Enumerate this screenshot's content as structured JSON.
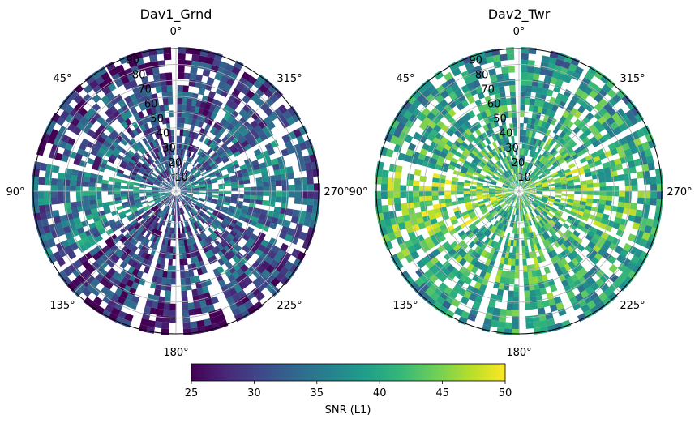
{
  "chart_data": [
    {
      "type": "heatmap",
      "projection": "polar",
      "title": "Dav1_Grnd",
      "radial_ticks": [
        "10",
        "20",
        "30",
        "40",
        "50",
        "60",
        "70",
        "80",
        "90"
      ],
      "radial_range": [
        0,
        90
      ],
      "angular_ticks": [
        "0°",
        "45°",
        "90°",
        "135°",
        "180°",
        "225°",
        "270°",
        "315°"
      ],
      "angular_direction": "counterclockwise",
      "zero_location": "top",
      "grid": true,
      "sectors": [
        {
          "az_start": 300,
          "az_end": 330,
          "mean_snr": 33
        },
        {
          "az_start": 332,
          "az_end": 358,
          "mean_snr": 31
        },
        {
          "az_start": 2,
          "az_end": 28,
          "mean_snr": 31
        },
        {
          "az_start": 30,
          "az_end": 75,
          "mean_snr": 32
        },
        {
          "az_start": 78,
          "az_end": 122,
          "mean_snr": 36
        },
        {
          "az_start": 125,
          "az_end": 160,
          "mean_snr": 30
        },
        {
          "az_start": 165,
          "az_end": 180,
          "mean_snr": 31
        },
        {
          "az_start": 183,
          "az_end": 200,
          "mean_snr": 31
        },
        {
          "az_start": 205,
          "az_end": 242,
          "mean_snr": 32
        },
        {
          "az_start": 246,
          "az_end": 296,
          "mean_snr": 35
        }
      ]
    },
    {
      "type": "heatmap",
      "projection": "polar",
      "title": "Dav2_Twr",
      "radial_ticks": [
        "10",
        "20",
        "30",
        "40",
        "50",
        "60",
        "70",
        "80",
        "90"
      ],
      "radial_range": [
        0,
        90
      ],
      "angular_ticks": [
        "0°",
        "45°",
        "90°",
        "135°",
        "180°",
        "225°",
        "270°",
        "315°"
      ],
      "angular_direction": "counterclockwise",
      "zero_location": "top",
      "grid": true,
      "sectors": [
        {
          "az_start": 300,
          "az_end": 330,
          "mean_snr": 41
        },
        {
          "az_start": 332,
          "az_end": 358,
          "mean_snr": 39
        },
        {
          "az_start": 2,
          "az_end": 28,
          "mean_snr": 40
        },
        {
          "az_start": 30,
          "az_end": 75,
          "mean_snr": 41
        },
        {
          "az_start": 78,
          "az_end": 122,
          "mean_snr": 45
        },
        {
          "az_start": 125,
          "az_end": 160,
          "mean_snr": 41
        },
        {
          "az_start": 165,
          "az_end": 180,
          "mean_snr": 42
        },
        {
          "az_start": 183,
          "az_end": 200,
          "mean_snr": 42
        },
        {
          "az_start": 205,
          "az_end": 242,
          "mean_snr": 41
        },
        {
          "az_start": 246,
          "az_end": 296,
          "mean_snr": 43
        }
      ]
    }
  ],
  "colorbar": {
    "label": "SNR (L1)",
    "min": 25,
    "max": 50,
    "ticks": [
      "25",
      "30",
      "35",
      "40",
      "45",
      "50"
    ],
    "colormap": "viridis",
    "stops": [
      "#440154",
      "#482878",
      "#3e4989",
      "#31688e",
      "#26828e",
      "#1f9e89",
      "#35b779",
      "#6ece58",
      "#b5de2b",
      "#fde725"
    ]
  }
}
